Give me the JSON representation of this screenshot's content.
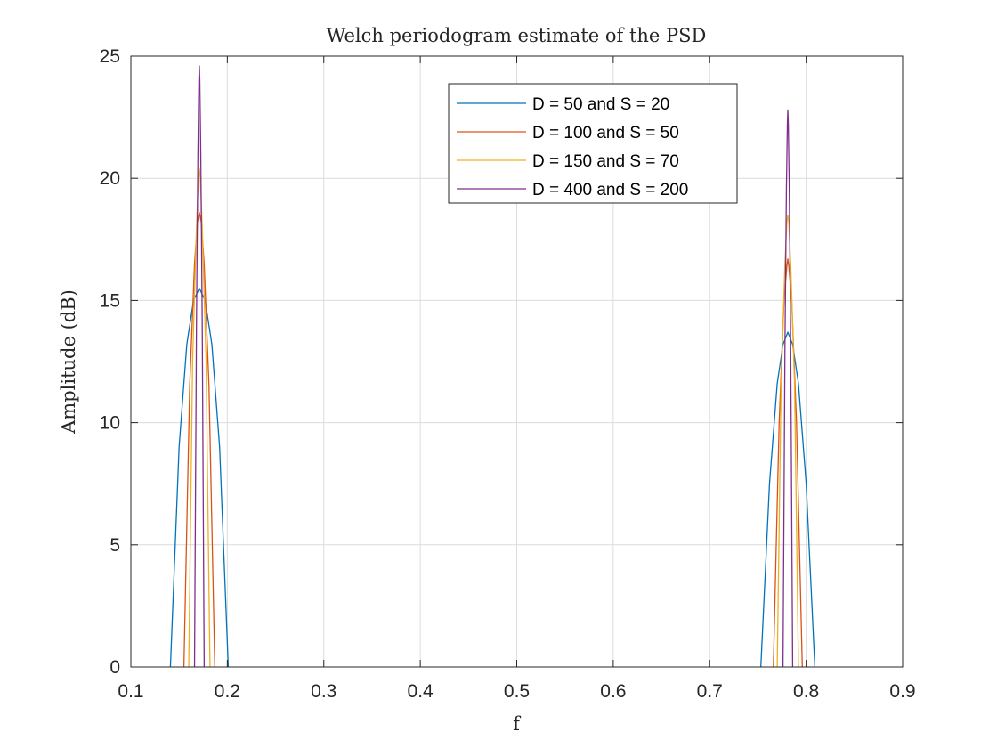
{
  "chart_data": {
    "type": "line",
    "title": "Welch periodogram estimate of the PSD",
    "xlabel": "f",
    "ylabel": "Amplitude (dB)",
    "xlim": [
      0.1,
      0.9
    ],
    "ylim": [
      0,
      25
    ],
    "xticks": [
      0.1,
      0.2,
      0.3,
      0.4,
      0.5,
      0.6,
      0.7,
      0.8,
      0.9
    ],
    "xtick_labels": [
      "0.1",
      "0.2",
      "0.3",
      "0.4",
      "0.5",
      "0.6",
      "0.7",
      "0.8",
      "0.9"
    ],
    "yticks": [
      0,
      5,
      10,
      15,
      20,
      25
    ],
    "ytick_labels": [
      "0",
      "5",
      "10",
      "15",
      "20",
      "25"
    ],
    "grid": true,
    "legend_position": "top-right",
    "series": [
      {
        "name": "D = 50 and S = 20",
        "color": "#0072BD",
        "peaks": [
          {
            "x": [
              0.141,
              0.15,
              0.158,
              0.165,
              0.171,
              0.177,
              0.184,
              0.192,
              0.201
            ],
            "y": [
              0,
              9.0,
              13.2,
              15.0,
              15.5,
              15.0,
              13.2,
              9.0,
              0
            ]
          },
          {
            "x": [
              0.753,
              0.762,
              0.77,
              0.776,
              0.781,
              0.786,
              0.792,
              0.8,
              0.809
            ],
            "y": [
              0,
              7.5,
              11.6,
              13.2,
              13.7,
              13.2,
              11.6,
              7.5,
              0
            ]
          }
        ]
      },
      {
        "name": "D = 100 and S = 50",
        "color": "#D95319",
        "peaks": [
          {
            "x": [
              0.155,
              0.161,
              0.166,
              0.169,
              0.171,
              0.173,
              0.176,
              0.181,
              0.187
            ],
            "y": [
              0,
              11.5,
              16.5,
              18.2,
              18.6,
              18.2,
              16.5,
              11.5,
              0
            ]
          },
          {
            "x": [
              0.766,
              0.772,
              0.777,
              0.78,
              0.781,
              0.782,
              0.785,
              0.79,
              0.796
            ],
            "y": [
              0,
              10.0,
              15.0,
              16.4,
              16.7,
              16.4,
              15.0,
              10.0,
              0
            ]
          }
        ]
      },
      {
        "name": "D = 150 and S = 70",
        "color": "#EDB120",
        "peaks": [
          {
            "x": [
              0.16,
              0.164,
              0.168,
              0.17,
              0.171,
              0.172,
              0.174,
              0.178,
              0.182
            ],
            "y": [
              0,
              12.5,
              18.0,
              20.0,
              20.4,
              20.0,
              18.0,
              12.5,
              0
            ]
          },
          {
            "x": [
              0.77,
              0.774,
              0.778,
              0.78,
              0.781,
              0.782,
              0.784,
              0.788,
              0.792
            ],
            "y": [
              0,
              11.5,
              16.5,
              18.2,
              18.5,
              18.2,
              16.5,
              11.5,
              0
            ]
          }
        ]
      },
      {
        "name": "D = 400 and S = 200",
        "color": "#7E2F8E",
        "peaks": [
          {
            "x": [
              0.166,
              0.168,
              0.1695,
              0.1705,
              0.171,
              0.1715,
              0.1725,
              0.174,
              0.176
            ],
            "y": [
              0,
              14.0,
              21.0,
              24.0,
              24.6,
              24.0,
              21.0,
              14.0,
              0
            ]
          },
          {
            "x": [
              0.776,
              0.778,
              0.7795,
              0.7805,
              0.781,
              0.7815,
              0.7825,
              0.784,
              0.786
            ],
            "y": [
              0,
              13.0,
              19.5,
              22.2,
              22.8,
              22.2,
              19.5,
              13.0,
              0
            ]
          }
        ]
      }
    ]
  }
}
